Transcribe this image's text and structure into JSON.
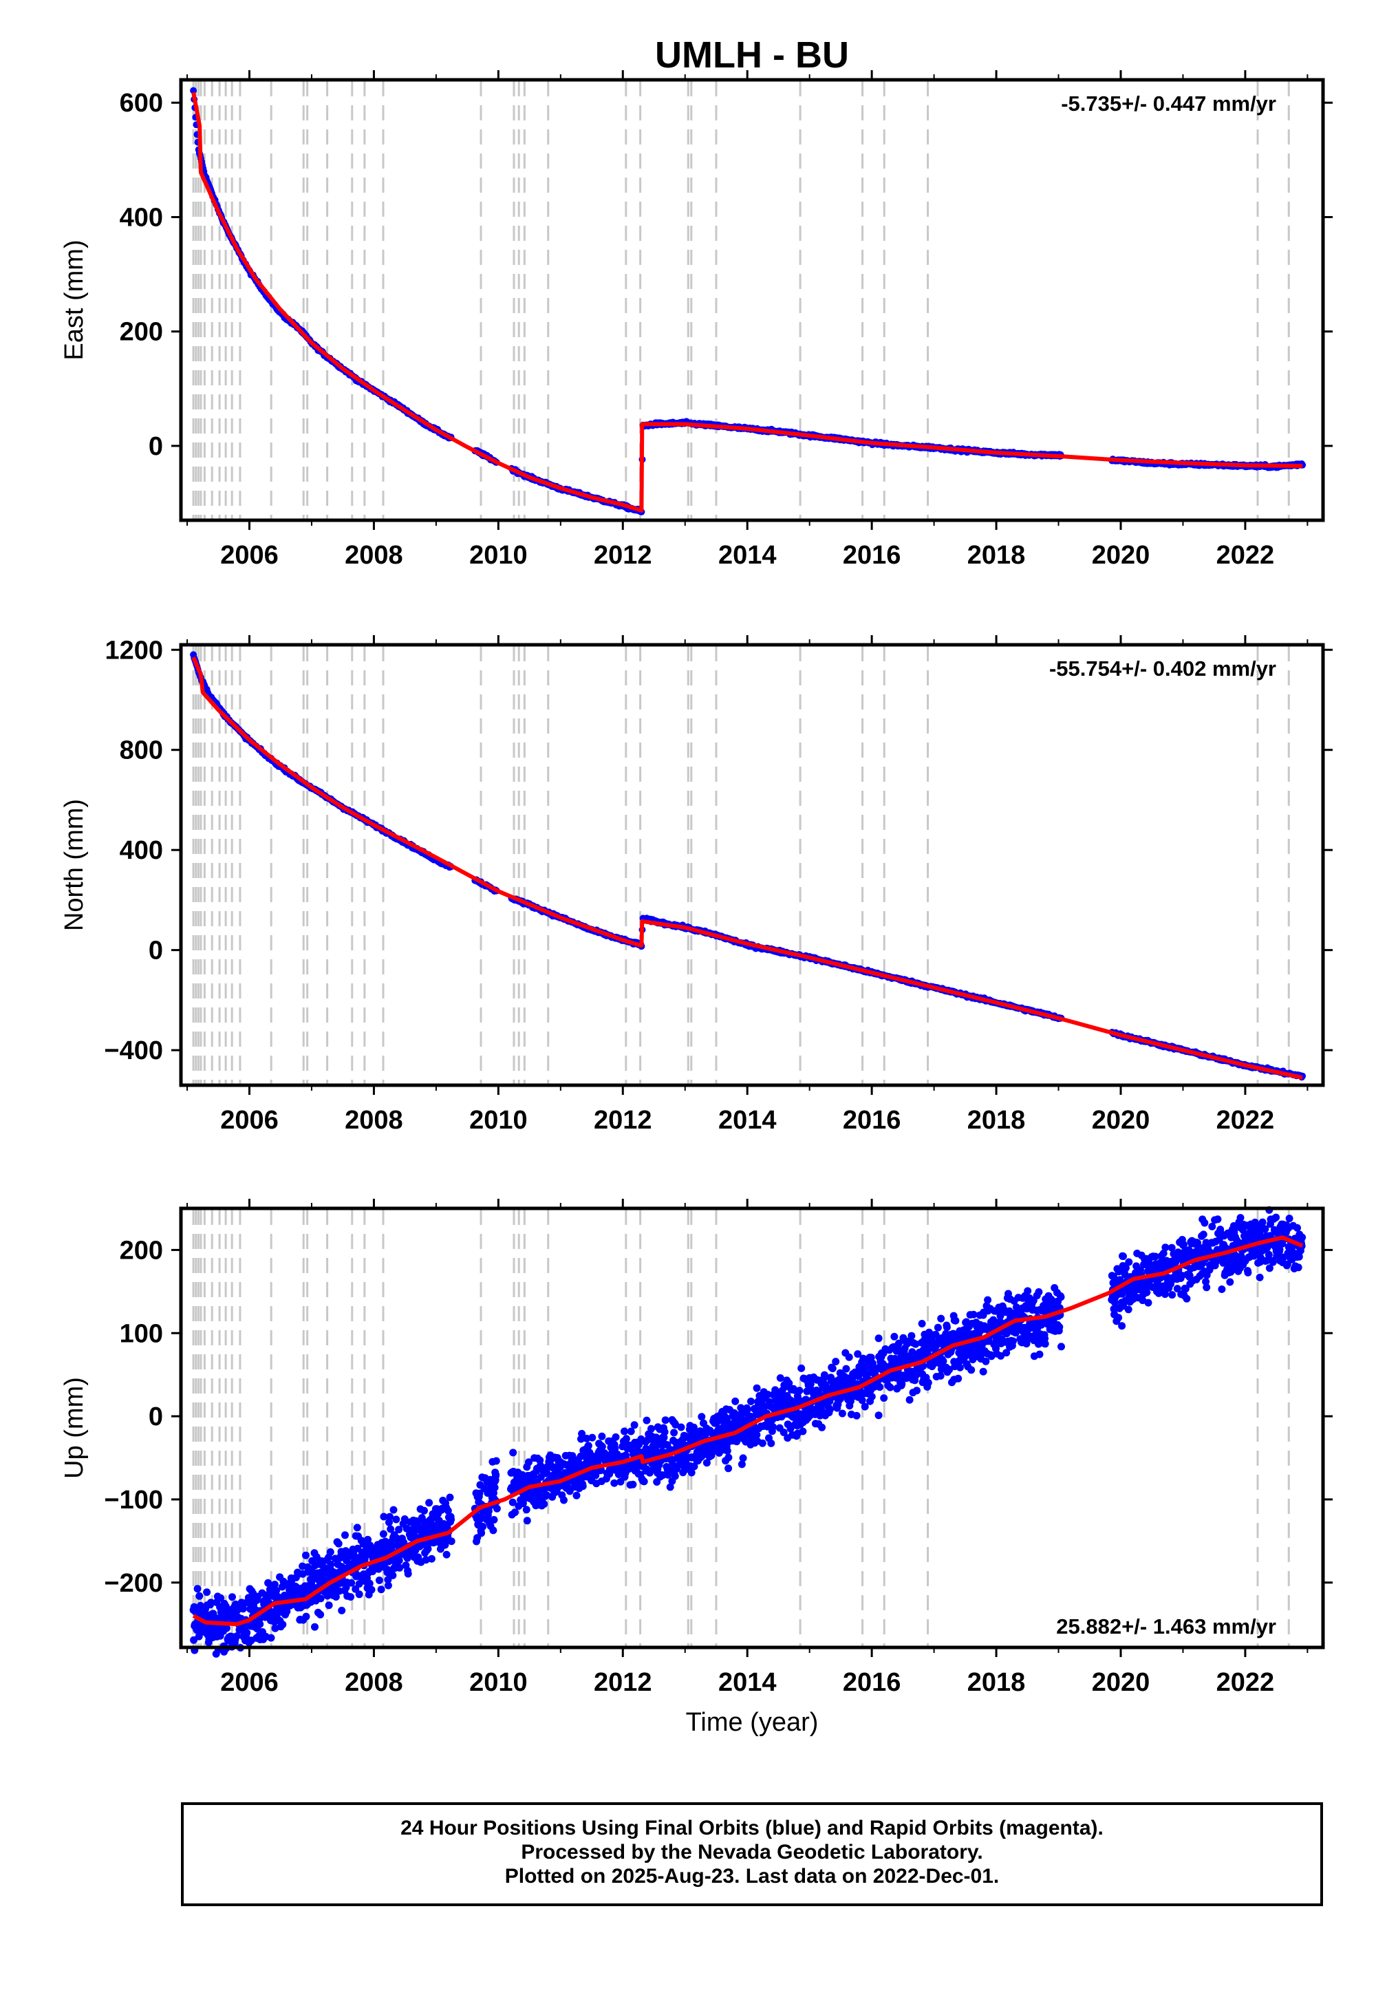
{
  "title": "UMLH - BU",
  "xlabel": "Time (year)",
  "caption": {
    "line1": "24 Hour Positions Using Final Orbits (blue) and Rapid Orbits (magenta).",
    "line2": "Processed by the Nevada Geodetic Laboratory.",
    "line3": "Plotted on 2025-Aug-23. Last data on 2022-Dec-01."
  },
  "colors": {
    "data_points": "#0000ff",
    "model_fit": "#ff0000",
    "event_lines": "#c8c8c8",
    "frame": "#000000"
  },
  "chart_data": [
    {
      "type": "scatter",
      "ylabel": "East (mm)",
      "rate_label": "-5.735+/- 0.447 mm/yr",
      "rate_position": "top-right",
      "xlim": [
        2004.9,
        2023.25
      ],
      "ylim": [
        -130,
        640
      ],
      "xticks": [
        "2006",
        "2008",
        "2010",
        "2012",
        "2014",
        "2016",
        "2018",
        "2020",
        "2022"
      ],
      "yticks": [
        "600",
        "400",
        "200",
        "0"
      ],
      "grid": false,
      "series": [
        {
          "role": "data",
          "points": [
            [
              2005.1,
              620
            ],
            [
              2005.18,
              520
            ],
            [
              2005.28,
              475
            ],
            [
              2005.4,
              440
            ],
            [
              2005.55,
              400
            ],
            [
              2005.7,
              365
            ],
            [
              2005.85,
              335
            ],
            [
              2006.0,
              305
            ],
            [
              2006.2,
              275
            ],
            [
              2006.4,
              245
            ],
            [
              2006.6,
              222
            ],
            [
              2006.8,
              205
            ],
            [
              2007.0,
              180
            ],
            [
              2007.2,
              160
            ],
            [
              2007.5,
              135
            ],
            [
              2007.8,
              110
            ],
            [
              2008.0,
              97
            ],
            [
              2008.4,
              70
            ],
            [
              2008.8,
              40
            ],
            [
              2009.2,
              15
            ],
            [
              2009.7,
              -12
            ],
            [
              2010.0,
              -30
            ],
            [
              2010.5,
              -55
            ],
            [
              2011.0,
              -75
            ],
            [
              2011.5,
              -90
            ],
            [
              2012.0,
              -105
            ],
            [
              2012.3,
              -115
            ],
            [
              2012.32,
              35
            ],
            [
              2012.5,
              38
            ],
            [
              2013.0,
              40
            ],
            [
              2013.5,
              35
            ],
            [
              2014.0,
              30
            ],
            [
              2014.5,
              25
            ],
            [
              2015.0,
              18
            ],
            [
              2015.5,
              12
            ],
            [
              2016.0,
              5
            ],
            [
              2016.5,
              0
            ],
            [
              2017.0,
              -3
            ],
            [
              2017.5,
              -8
            ],
            [
              2018.0,
              -12
            ],
            [
              2018.5,
              -15
            ],
            [
              2019.0,
              -16
            ],
            [
              2019.9,
              -25
            ],
            [
              2020.5,
              -30
            ],
            [
              2021.0,
              -32
            ],
            [
              2021.5,
              -33
            ],
            [
              2022.0,
              -35
            ],
            [
              2022.5,
              -36
            ],
            [
              2022.92,
              -32
            ]
          ]
        },
        {
          "role": "model",
          "points": [
            [
              2005.1,
              618
            ],
            [
              2005.2,
              560
            ],
            [
              2005.22,
              478
            ],
            [
              2005.5,
              410
            ],
            [
              2005.8,
              345
            ],
            [
              2006.1,
              292
            ],
            [
              2006.5,
              238
            ],
            [
              2007.0,
              180
            ],
            [
              2007.5,
              135
            ],
            [
              2008.0,
              97
            ],
            [
              2008.5,
              62
            ],
            [
              2009.0,
              28
            ],
            [
              2009.5,
              -2
            ],
            [
              2010.0,
              -30
            ],
            [
              2010.5,
              -55
            ],
            [
              2011.0,
              -74
            ],
            [
              2011.5,
              -90
            ],
            [
              2012.0,
              -103
            ],
            [
              2012.3,
              -113
            ],
            [
              2012.31,
              38
            ],
            [
              2013.0,
              38
            ],
            [
              2014.0,
              30
            ],
            [
              2015.0,
              18
            ],
            [
              2016.0,
              5
            ],
            [
              2017.0,
              -3
            ],
            [
              2018.0,
              -12
            ],
            [
              2019.0,
              -18
            ],
            [
              2020.0,
              -25
            ],
            [
              2021.0,
              -30
            ],
            [
              2022.0,
              -34
            ],
            [
              2022.92,
              -35
            ]
          ]
        }
      ]
    },
    {
      "type": "scatter",
      "ylabel": "North (mm)",
      "rate_label": "-55.754+/- 0.402 mm/yr",
      "rate_position": "top-right",
      "xlim": [
        2004.9,
        2023.25
      ],
      "ylim": [
        -540,
        1220
      ],
      "xticks": [
        "2006",
        "2008",
        "2010",
        "2012",
        "2014",
        "2016",
        "2018",
        "2020",
        "2022"
      ],
      "yticks": [
        "1200",
        "800",
        "400",
        "0",
        "−400"
      ],
      "grid": false,
      "series": [
        {
          "role": "data",
          "points": [
            [
              2005.1,
              1180
            ],
            [
              2005.2,
              1100
            ],
            [
              2005.35,
              1020
            ],
            [
              2005.6,
              940
            ],
            [
              2005.9,
              860
            ],
            [
              2006.3,
              770
            ],
            [
              2006.8,
              680
            ],
            [
              2007.5,
              570
            ],
            [
              2008.0,
              500
            ],
            [
              2008.5,
              430
            ],
            [
              2009.0,
              360
            ],
            [
              2009.5,
              300
            ],
            [
              2010.0,
              230
            ],
            [
              2010.5,
              180
            ],
            [
              2011.0,
              130
            ],
            [
              2011.5,
              80
            ],
            [
              2012.0,
              40
            ],
            [
              2012.3,
              20
            ],
            [
              2012.32,
              125
            ],
            [
              2013.0,
              90
            ],
            [
              2013.5,
              60
            ],
            [
              2014.0,
              20
            ],
            [
              2015.0,
              -30
            ],
            [
              2016.0,
              -90
            ],
            [
              2017.0,
              -150
            ],
            [
              2018.0,
              -210
            ],
            [
              2019.0,
              -270
            ],
            [
              2020.0,
              -340
            ],
            [
              2021.0,
              -400
            ],
            [
              2022.0,
              -460
            ],
            [
              2022.92,
              -505
            ]
          ]
        },
        {
          "role": "model",
          "points": [
            [
              2005.1,
              1170
            ],
            [
              2005.22,
              1100
            ],
            [
              2005.25,
              1030
            ],
            [
              2005.5,
              960
            ],
            [
              2006.0,
              840
            ],
            [
              2006.5,
              740
            ],
            [
              2007.0,
              650
            ],
            [
              2007.5,
              570
            ],
            [
              2008.0,
              500
            ],
            [
              2009.0,
              370
            ],
            [
              2010.0,
              235
            ],
            [
              2011.0,
              130
            ],
            [
              2012.0,
              40
            ],
            [
              2012.3,
              18
            ],
            [
              2012.31,
              115
            ],
            [
              2013.0,
              90
            ],
            [
              2014.0,
              25
            ],
            [
              2015.0,
              -30
            ],
            [
              2016.0,
              -90
            ],
            [
              2017.0,
              -150
            ],
            [
              2018.0,
              -210
            ],
            [
              2019.0,
              -272
            ],
            [
              2020.0,
              -340
            ],
            [
              2021.0,
              -400
            ],
            [
              2022.0,
              -460
            ],
            [
              2022.92,
              -510
            ]
          ]
        }
      ]
    },
    {
      "type": "scatter",
      "ylabel": "Up (mm)",
      "rate_label": "25.882+/- 1.463 mm/yr",
      "rate_position": "bottom-right",
      "xlim": [
        2004.9,
        2023.25
      ],
      "ylim": [
        -278,
        250
      ],
      "xticks": [
        "2006",
        "2008",
        "2010",
        "2012",
        "2014",
        "2016",
        "2018",
        "2020",
        "2022"
      ],
      "yticks": [
        "200",
        "100",
        "0",
        "−100",
        "−200"
      ],
      "grid": false,
      "series": [
        {
          "role": "data",
          "scatter": 32,
          "points": [
            [
              2005.1,
              -240
            ],
            [
              2005.5,
              -250
            ],
            [
              2006.0,
              -245
            ],
            [
              2006.5,
              -225
            ],
            [
              2007.0,
              -205
            ],
            [
              2007.5,
              -185
            ],
            [
              2008.0,
              -175
            ],
            [
              2008.5,
              -155
            ],
            [
              2009.0,
              -135
            ],
            [
              2009.7,
              -110
            ],
            [
              2010.0,
              -95
            ],
            [
              2010.5,
              -80
            ],
            [
              2011.0,
              -70
            ],
            [
              2011.5,
              -55
            ],
            [
              2012.0,
              -50
            ],
            [
              2012.5,
              -45
            ],
            [
              2013.0,
              -40
            ],
            [
              2013.5,
              -20
            ],
            [
              2014.0,
              -10
            ],
            [
              2014.5,
              10
            ],
            [
              2015.0,
              20
            ],
            [
              2015.5,
              35
            ],
            [
              2016.0,
              45
            ],
            [
              2016.5,
              60
            ],
            [
              2017.0,
              75
            ],
            [
              2017.5,
              90
            ],
            [
              2018.0,
              105
            ],
            [
              2018.5,
              115
            ],
            [
              2019.0,
              120
            ],
            [
              2019.9,
              150
            ],
            [
              2020.5,
              170
            ],
            [
              2021.0,
              185
            ],
            [
              2021.5,
              195
            ],
            [
              2022.0,
              205
            ],
            [
              2022.5,
              215
            ],
            [
              2022.92,
              200
            ]
          ]
        },
        {
          "role": "model",
          "points": [
            [
              2005.1,
              -240
            ],
            [
              2005.3,
              -248
            ],
            [
              2005.8,
              -250
            ],
            [
              2006.0,
              -245
            ],
            [
              2006.4,
              -225
            ],
            [
              2006.9,
              -220
            ],
            [
              2007.3,
              -200
            ],
            [
              2007.8,
              -180
            ],
            [
              2008.2,
              -170
            ],
            [
              2008.7,
              -150
            ],
            [
              2009.2,
              -140
            ],
            [
              2009.7,
              -110
            ],
            [
              2010.1,
              -100
            ],
            [
              2010.5,
              -85
            ],
            [
              2011.0,
              -78
            ],
            [
              2011.5,
              -62
            ],
            [
              2012.0,
              -55
            ],
            [
              2012.3,
              -48
            ],
            [
              2012.32,
              -55
            ],
            [
              2012.8,
              -45
            ],
            [
              2013.3,
              -30
            ],
            [
              2013.8,
              -20
            ],
            [
              2014.3,
              0
            ],
            [
              2014.8,
              10
            ],
            [
              2015.3,
              25
            ],
            [
              2015.8,
              35
            ],
            [
              2016.3,
              55
            ],
            [
              2016.8,
              65
            ],
            [
              2017.3,
              85
            ],
            [
              2017.8,
              95
            ],
            [
              2018.3,
              115
            ],
            [
              2018.8,
              120
            ],
            [
              2019.2,
              130
            ],
            [
              2019.8,
              148
            ],
            [
              2020.2,
              165
            ],
            [
              2020.7,
              172
            ],
            [
              2021.2,
              188
            ],
            [
              2021.7,
              197
            ],
            [
              2022.2,
              208
            ],
            [
              2022.6,
              215
            ],
            [
              2022.92,
              205
            ]
          ]
        }
      ]
    }
  ],
  "event_lines_years": [
    2005.1,
    2005.14,
    2005.18,
    2005.22,
    2005.28,
    2005.4,
    2005.52,
    2005.62,
    2005.72,
    2005.85,
    2006.35,
    2006.87,
    2006.93,
    2007.25,
    2007.65,
    2007.85,
    2008.15,
    2009.72,
    2010.25,
    2010.33,
    2010.42,
    2010.8,
    2012.05,
    2012.28,
    2013.05,
    2013.1,
    2013.5,
    2014.85,
    2015.85,
    2016.2,
    2016.9,
    2022.2,
    2022.7
  ]
}
